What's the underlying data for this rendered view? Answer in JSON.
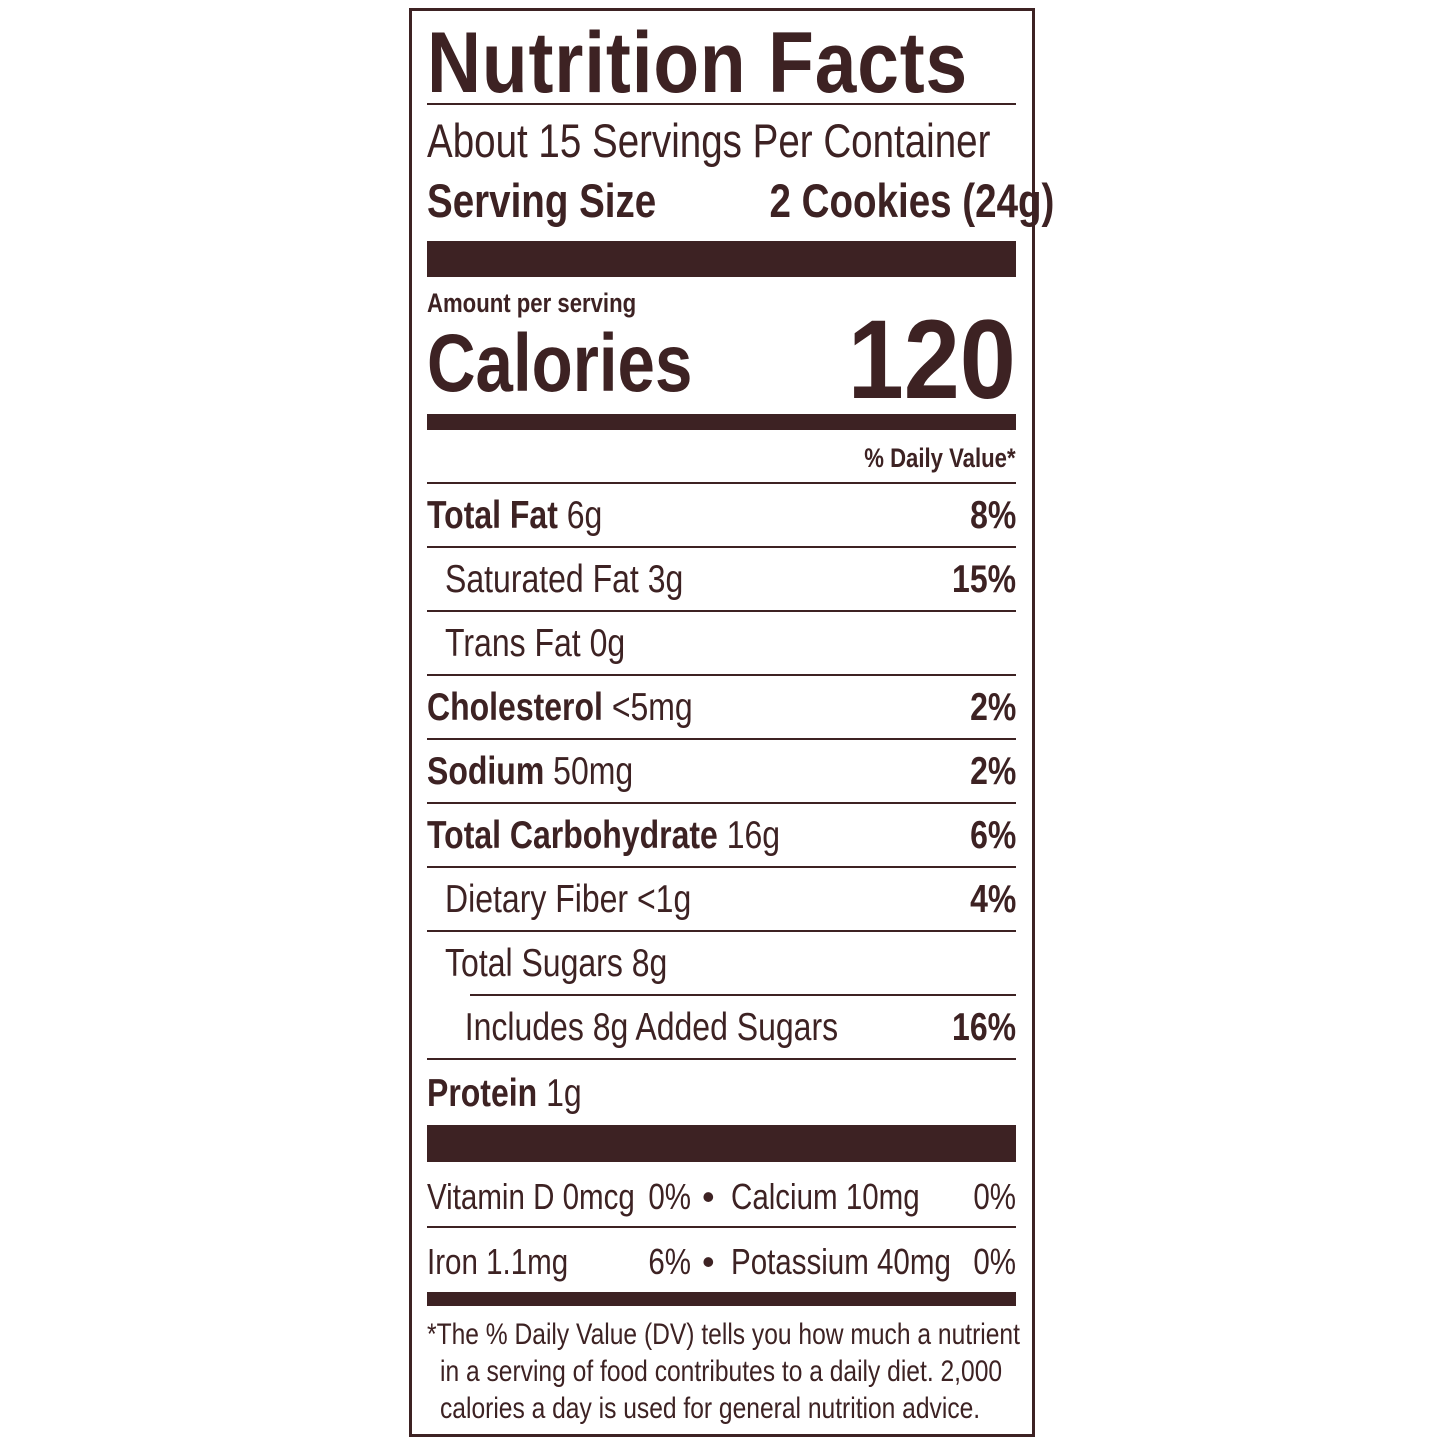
{
  "title": "Nutrition Facts",
  "servings_per_container": "About 15 Servings Per Container",
  "serving_size_label": "Serving Size",
  "serving_size_value": "2 Cookies (24g)",
  "amount_per_serving": "Amount per serving",
  "calories_label": "Calories",
  "calories_value": "120",
  "dv_header": "% Daily Value*",
  "nutrients": [
    {
      "name": "Total Fat",
      "amount": "6g",
      "dv": "8%"
    },
    {
      "name": "Saturated Fat",
      "amount": "3g",
      "dv": "15%"
    },
    {
      "name": "Trans Fat",
      "amount": "0g",
      "dv": ""
    },
    {
      "name": "Cholesterol",
      "amount": "<5mg",
      "dv": "2%"
    },
    {
      "name": "Sodium",
      "amount": "50mg",
      "dv": "2%"
    },
    {
      "name": "Total Carbohydrate",
      "amount": "16g",
      "dv": "6%"
    },
    {
      "name": "Dietary Fiber",
      "amount": "<1g",
      "dv": "4%"
    },
    {
      "name": "Total Sugars",
      "amount": "8g",
      "dv": ""
    },
    {
      "name": "Includes 8g Added Sugars",
      "amount": "",
      "dv": "16%"
    },
    {
      "name": "Protein",
      "amount": "1g",
      "dv": ""
    }
  ],
  "vitamins": [
    {
      "left": "Vitamin D 0mcg",
      "left_dv": "0%",
      "right": "Calcium 10mg",
      "right_dv": "0%"
    },
    {
      "left": "Iron 1.1mg",
      "left_dv": "6%",
      "right": "Potassium 40mg",
      "right_dv": "0%"
    }
  ],
  "bullet": "•",
  "footnote": [
    "*The % Daily Value (DV) tells you how much a nutrient",
    "in a serving of food contributes to a daily diet. 2,000",
    "calories a day is used for general nutrition advice."
  ],
  "colors": {
    "ink": "#3d2223",
    "background": "#ffffff"
  }
}
